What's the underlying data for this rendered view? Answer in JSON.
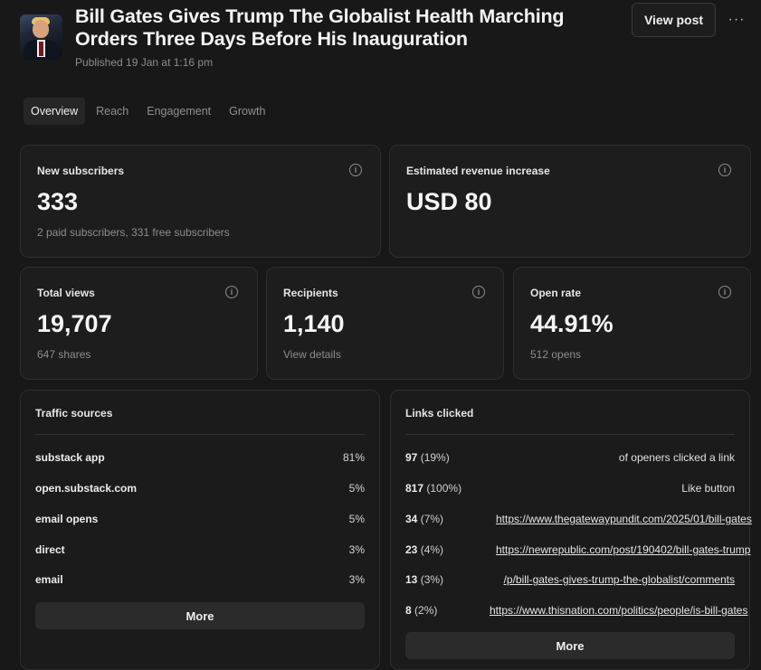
{
  "post": {
    "title": "Bill Gates Gives Trump The Globalist Health Marching Orders Three Days Before His Inauguration",
    "published": "Published 19 Jan at 1:16 pm",
    "view_post_label": "View post",
    "more_menu_label": "···"
  },
  "tabs": [
    {
      "label": "Overview",
      "active": true
    },
    {
      "label": "Reach",
      "active": false
    },
    {
      "label": "Engagement",
      "active": false
    },
    {
      "label": "Growth",
      "active": false
    }
  ],
  "stats": {
    "new_subscribers": {
      "label": "New subscribers",
      "value": "333",
      "sub": "2 paid subscribers, 331 free subscribers"
    },
    "revenue": {
      "label": "Estimated revenue increase",
      "value": "USD 80"
    },
    "total_views": {
      "label": "Total views",
      "value": "19,707",
      "sub": "647 shares"
    },
    "recipients": {
      "label": "Recipients",
      "value": "1,140",
      "sub": "View details"
    },
    "open_rate": {
      "label": "Open rate",
      "value": "44.91%",
      "sub": "512 opens"
    }
  },
  "info_icon_glyph": "i",
  "traffic": {
    "title": "Traffic sources",
    "rows": [
      {
        "name": "substack app",
        "pct": "81%"
      },
      {
        "name": "open.substack.com",
        "pct": "5%"
      },
      {
        "name": "email opens",
        "pct": "5%"
      },
      {
        "name": "direct",
        "pct": "3%"
      },
      {
        "name": "email",
        "pct": "3%"
      }
    ],
    "more_label": "More"
  },
  "links": {
    "title": "Links clicked",
    "rows": [
      {
        "count": "97",
        "pct": "(19%)",
        "text": "of openers clicked a link",
        "is_link": false
      },
      {
        "count": "817",
        "pct": "(100%)",
        "text": "Like button",
        "is_link": false
      },
      {
        "count": "34",
        "pct": "(7%)",
        "text": "https://www.thegatewaypundit.com/2025/01/bill-gates",
        "is_link": true
      },
      {
        "count": "23",
        "pct": "(4%)",
        "text": "https://newrepublic.com/post/190402/bill-gates-trump",
        "is_link": true
      },
      {
        "count": "13",
        "pct": "(3%)",
        "text": "/p/bill-gates-gives-trump-the-globalist/comments",
        "is_link": true
      },
      {
        "count": "8",
        "pct": "(2%)",
        "text": "https://www.thisnation.com/politics/people/is-bill-gates",
        "is_link": true
      }
    ],
    "more_label": "More"
  }
}
